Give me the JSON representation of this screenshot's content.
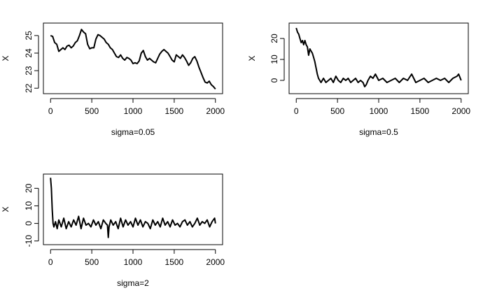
{
  "chart_data": [
    {
      "type": "line",
      "xlabel": "sigma=0.05",
      "ylabel": "X",
      "xlim": [
        0,
        2000
      ],
      "ylim": [
        21.85,
        25.55
      ],
      "xticks": [
        0,
        500,
        1000,
        1500,
        2000
      ],
      "yticks": [
        22,
        23,
        24,
        25
      ],
      "grid": false,
      "series": [
        {
          "x": [
            0,
            25,
            50,
            75,
            100,
            125,
            150,
            175,
            200,
            225,
            250,
            275,
            300,
            325,
            350,
            375,
            400,
            425,
            450,
            475,
            500,
            525,
            550,
            575,
            600,
            625,
            650,
            675,
            700,
            725,
            750,
            775,
            800,
            825,
            850,
            875,
            900,
            925,
            950,
            975,
            1000,
            1025,
            1050,
            1075,
            1100,
            1125,
            1150,
            1175,
            1200,
            1225,
            1250,
            1275,
            1300,
            1325,
            1350,
            1375,
            1400,
            1425,
            1450,
            1475,
            1500,
            1525,
            1550,
            1575,
            1600,
            1625,
            1650,
            1675,
            1700,
            1725,
            1750,
            1775,
            1800,
            1825,
            1850,
            1875,
            1900,
            1925,
            1950,
            1975,
            2000
          ],
          "y": [
            25.0,
            24.95,
            24.6,
            24.5,
            24.1,
            24.2,
            24.3,
            24.2,
            24.4,
            24.45,
            24.3,
            24.4,
            24.6,
            24.7,
            25.0,
            25.35,
            25.2,
            25.1,
            24.5,
            24.25,
            24.3,
            24.3,
            24.8,
            25.05,
            25.0,
            24.9,
            24.8,
            24.6,
            24.5,
            24.3,
            24.2,
            24.0,
            23.8,
            23.75,
            23.9,
            23.7,
            23.6,
            23.75,
            23.7,
            23.6,
            23.4,
            23.45,
            23.4,
            23.55,
            24.0,
            24.15,
            23.8,
            23.6,
            23.7,
            23.6,
            23.5,
            23.45,
            23.7,
            23.95,
            24.1,
            24.2,
            24.1,
            24.0,
            23.8,
            23.6,
            23.5,
            23.9,
            23.8,
            23.7,
            23.9,
            23.75,
            23.55,
            23.3,
            23.45,
            23.7,
            23.8,
            23.55,
            23.2,
            22.9,
            22.6,
            22.35,
            22.3,
            22.4,
            22.2,
            22.1,
            21.95
          ]
        }
      ]
    },
    {
      "type": "line",
      "xlabel": "sigma=0.5",
      "ylabel": "X",
      "xlim": [
        0,
        2000
      ],
      "ylim": [
        -5,
        26
      ],
      "xticks": [
        0,
        500,
        1000,
        1500,
        2000
      ],
      "yticks": [
        0,
        10,
        20
      ],
      "grid": false,
      "series": [
        {
          "x": [
            0,
            15,
            30,
            45,
            60,
            75,
            90,
            105,
            120,
            135,
            150,
            165,
            180,
            195,
            210,
            225,
            240,
            255,
            270,
            285,
            300,
            330,
            360,
            390,
            420,
            450,
            480,
            510,
            540,
            570,
            600,
            630,
            660,
            690,
            720,
            750,
            780,
            810,
            830,
            850,
            870,
            900,
            930,
            960,
            1000,
            1050,
            1100,
            1150,
            1200,
            1250,
            1300,
            1350,
            1400,
            1450,
            1500,
            1550,
            1600,
            1650,
            1700,
            1750,
            1800,
            1850,
            1900,
            1950,
            1970,
            2000
          ],
          "y": [
            25,
            23,
            22,
            20,
            18,
            19,
            17,
            19,
            17,
            16,
            12,
            15,
            14,
            13,
            11,
            9,
            6,
            3,
            1,
            0,
            -1,
            1,
            -1,
            0,
            1,
            -1,
            2,
            0,
            -1,
            1,
            0,
            1,
            -1,
            0,
            1,
            -1,
            0,
            -1,
            -3,
            -2,
            0,
            2,
            1,
            3,
            0,
            1,
            -1,
            0,
            1,
            -1,
            1,
            0,
            3,
            -1,
            0,
            1,
            -1,
            0,
            1,
            0,
            1,
            -1,
            1,
            2,
            3,
            0
          ]
        }
      ]
    },
    {
      "type": "line",
      "xlabel": "sigma=2",
      "ylabel": "X",
      "xlim": [
        0,
        2000
      ],
      "ylim": [
        -10.5,
        26.5
      ],
      "xticks": [
        0,
        500,
        1000,
        1500,
        2000
      ],
      "yticks": [
        -10,
        0,
        10,
        20
      ],
      "grid": false,
      "series": [
        {
          "x": [
            0,
            10,
            20,
            30,
            40,
            60,
            80,
            100,
            130,
            160,
            190,
            220,
            250,
            280,
            310,
            340,
            370,
            400,
            430,
            460,
            490,
            520,
            550,
            580,
            610,
            640,
            670,
            690,
            700,
            710,
            730,
            760,
            790,
            820,
            850,
            880,
            910,
            940,
            970,
            1000,
            1030,
            1060,
            1090,
            1120,
            1150,
            1180,
            1210,
            1240,
            1270,
            1300,
            1330,
            1360,
            1390,
            1420,
            1450,
            1480,
            1510,
            1540,
            1570,
            1600,
            1630,
            1660,
            1690,
            1720,
            1750,
            1780,
            1810,
            1840,
            1870,
            1900,
            1930,
            1960,
            1990,
            2000
          ],
          "y": [
            26,
            20,
            8,
            0,
            -2,
            1,
            -3,
            2,
            -2,
            3,
            -3,
            1,
            -2,
            2,
            -1,
            4,
            -3,
            3,
            -1,
            0,
            -2,
            2,
            -1,
            1,
            -3,
            2,
            0,
            -1,
            -8,
            -2,
            2,
            -1,
            1,
            -3,
            3,
            -2,
            2,
            -1,
            1,
            -2,
            3,
            -1,
            2,
            -2,
            1,
            0,
            -3,
            2,
            -1,
            1,
            -2,
            3,
            -1,
            1,
            -2,
            2,
            -1,
            0,
            -2,
            1,
            2,
            -1,
            1,
            -2,
            0,
            3,
            -1,
            1,
            0,
            2,
            -2,
            1,
            3,
            0
          ]
        }
      ]
    }
  ]
}
